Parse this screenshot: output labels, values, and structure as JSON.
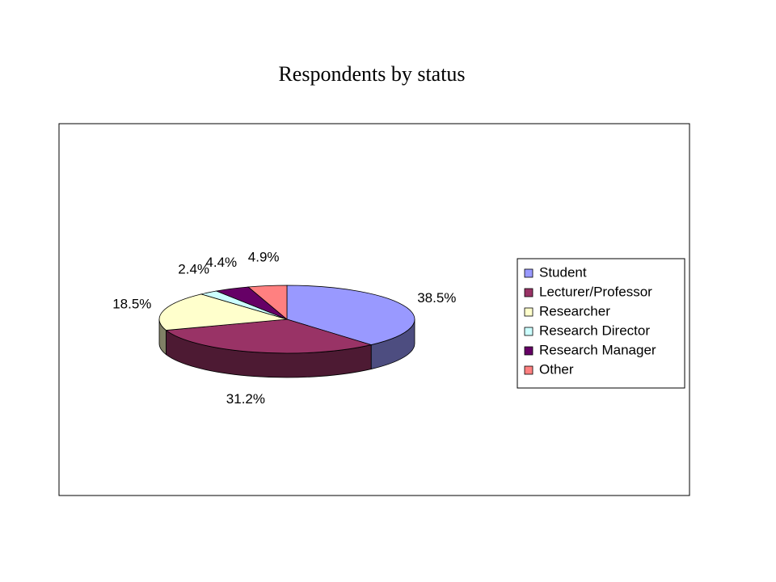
{
  "chart_data": {
    "type": "pie",
    "title": "Respondents by status",
    "categories": [
      "Student",
      "Lecturer/Professor",
      "Researcher",
      "Research Director",
      "Research Manager",
      "Other"
    ],
    "values": [
      38.5,
      31.2,
      18.5,
      2.4,
      4.4,
      4.9
    ],
    "value_labels": [
      "38.5%",
      "31.2%",
      "18.5%",
      "2.4%",
      "4.4%",
      "4.9%"
    ],
    "colors": [
      "#9999ff",
      "#993366",
      "#ffffcc",
      "#ccffff",
      "#660066",
      "#ff8080"
    ],
    "legend": "right"
  }
}
